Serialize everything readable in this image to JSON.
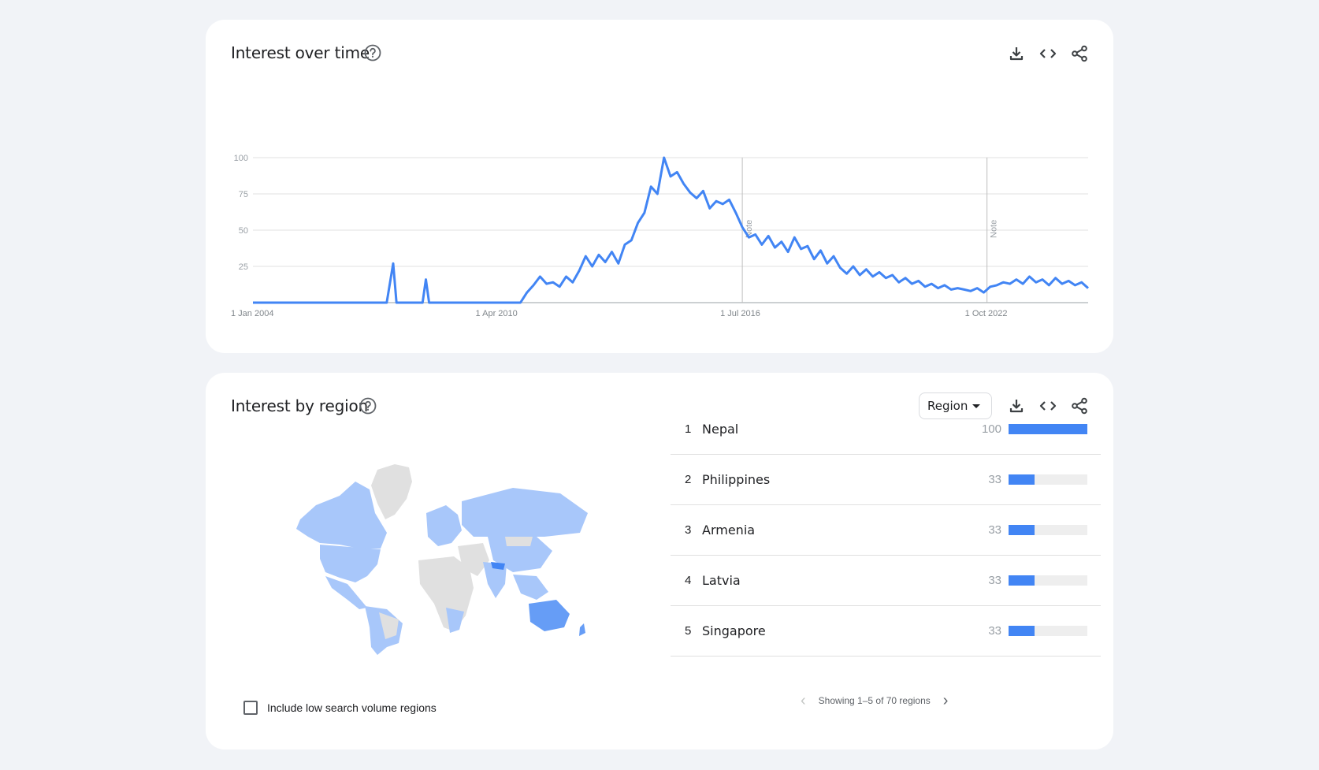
{
  "interest_over_time": {
    "title": "Interest over time",
    "icons": [
      "help-icon",
      "download-icon",
      "embed-icon",
      "share-icon"
    ]
  },
  "chart_data": {
    "type": "line",
    "title": "",
    "xlabel": "",
    "ylabel": "",
    "ylim": [
      0,
      100
    ],
    "yticks": [
      "100",
      "75",
      "50",
      "25"
    ],
    "xticks": [
      "1 Jan 2004",
      "1 Apr 2010",
      "1 Jul 2016",
      "1 Oct 2022"
    ],
    "grid": true,
    "annotations": [
      "Note",
      "Note"
    ],
    "series": [
      {
        "color": "#4285f4",
        "points": [
          [
            "2004-01",
            0
          ],
          [
            "2007-06",
            0
          ],
          [
            "2007-08",
            27
          ],
          [
            "2007-09",
            0
          ],
          [
            "2008-05",
            0
          ],
          [
            "2008-06",
            16
          ],
          [
            "2008-07",
            0
          ],
          [
            "2010-11",
            0
          ],
          [
            "2011-01",
            7
          ],
          [
            "2011-03",
            12
          ],
          [
            "2011-05",
            18
          ],
          [
            "2011-07",
            13
          ],
          [
            "2011-09",
            14
          ],
          [
            "2011-11",
            11
          ],
          [
            "2012-01",
            18
          ],
          [
            "2012-03",
            14
          ],
          [
            "2012-05",
            22
          ],
          [
            "2012-07",
            32
          ],
          [
            "2012-09",
            25
          ],
          [
            "2012-11",
            33
          ],
          [
            "2013-01",
            28
          ],
          [
            "2013-03",
            35
          ],
          [
            "2013-05",
            27
          ],
          [
            "2013-07",
            40
          ],
          [
            "2013-09",
            43
          ],
          [
            "2013-11",
            55
          ],
          [
            "2014-01",
            62
          ],
          [
            "2014-03",
            80
          ],
          [
            "2014-05",
            75
          ],
          [
            "2014-07",
            100
          ],
          [
            "2014-09",
            87
          ],
          [
            "2014-11",
            90
          ],
          [
            "2015-01",
            82
          ],
          [
            "2015-03",
            76
          ],
          [
            "2015-05",
            72
          ],
          [
            "2015-07",
            77
          ],
          [
            "2015-09",
            65
          ],
          [
            "2015-11",
            70
          ],
          [
            "2016-01",
            68
          ],
          [
            "2016-03",
            71
          ],
          [
            "2016-05",
            62
          ],
          [
            "2016-07",
            52
          ],
          [
            "2016-09",
            45
          ],
          [
            "2016-11",
            47
          ],
          [
            "2017-01",
            40
          ],
          [
            "2017-03",
            46
          ],
          [
            "2017-05",
            38
          ],
          [
            "2017-07",
            42
          ],
          [
            "2017-09",
            35
          ],
          [
            "2017-11",
            45
          ],
          [
            "2018-01",
            37
          ],
          [
            "2018-03",
            39
          ],
          [
            "2018-05",
            30
          ],
          [
            "2018-07",
            36
          ],
          [
            "2018-09",
            27
          ],
          [
            "2018-11",
            32
          ],
          [
            "2019-01",
            24
          ],
          [
            "2019-03",
            20
          ],
          [
            "2019-05",
            25
          ],
          [
            "2019-07",
            19
          ],
          [
            "2019-09",
            23
          ],
          [
            "2019-11",
            18
          ],
          [
            "2020-01",
            21
          ],
          [
            "2020-03",
            17
          ],
          [
            "2020-05",
            19
          ],
          [
            "2020-07",
            14
          ],
          [
            "2020-09",
            17
          ],
          [
            "2020-11",
            13
          ],
          [
            "2021-01",
            15
          ],
          [
            "2021-03",
            11
          ],
          [
            "2021-05",
            13
          ],
          [
            "2021-07",
            10
          ],
          [
            "2021-09",
            12
          ],
          [
            "2021-11",
            9
          ],
          [
            "2022-01",
            10
          ],
          [
            "2022-03",
            9
          ],
          [
            "2022-05",
            8
          ],
          [
            "2022-07",
            10
          ],
          [
            "2022-09",
            7
          ],
          [
            "2022-11",
            11
          ],
          [
            "2023-01",
            12
          ],
          [
            "2023-03",
            14
          ],
          [
            "2023-05",
            13
          ],
          [
            "2023-07",
            16
          ],
          [
            "2023-09",
            13
          ],
          [
            "2023-11",
            18
          ],
          [
            "2024-01",
            14
          ],
          [
            "2024-03",
            16
          ],
          [
            "2024-05",
            12
          ],
          [
            "2024-07",
            17
          ],
          [
            "2024-09",
            13
          ],
          [
            "2024-11",
            15
          ],
          [
            "2025-01",
            12
          ],
          [
            "2025-03",
            14
          ],
          [
            "2025-05",
            10
          ]
        ]
      }
    ]
  },
  "interest_by_region": {
    "title": "Interest by region",
    "region_select_label": "Region",
    "low_volume_label": "Include low search volume regions",
    "pager_text": "Showing 1–5 of 70 regions",
    "bar_color": "#4285f4",
    "rows": [
      {
        "rank": "1",
        "name": "Nepal",
        "value": "100",
        "fraction": 1.0
      },
      {
        "rank": "2",
        "name": "Philippines",
        "value": "33",
        "fraction": 0.33
      },
      {
        "rank": "3",
        "name": "Armenia",
        "value": "33",
        "fraction": 0.33
      },
      {
        "rank": "4",
        "name": "Latvia",
        "value": "33",
        "fraction": 0.33
      },
      {
        "rank": "5",
        "name": "Singapore",
        "value": "33",
        "fraction": 0.33
      }
    ]
  }
}
